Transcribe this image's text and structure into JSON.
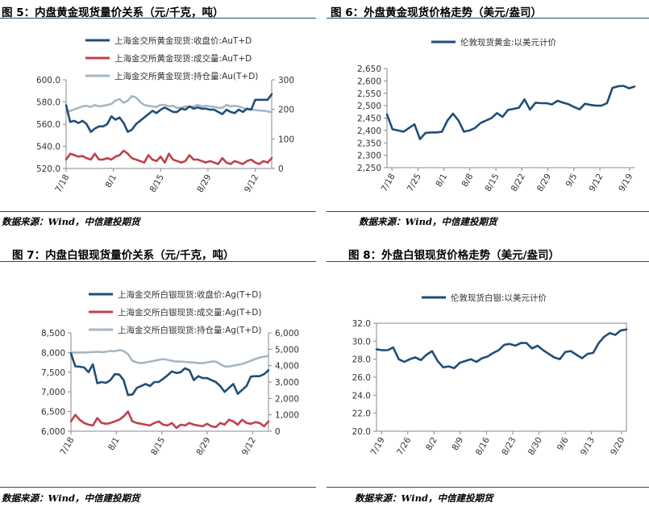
{
  "captions": {
    "fig5": "图 5：内盘黄金现货量价关系（元/千克，吨）",
    "fig6": "图 6：外盘黄金现货价格走势（美元/盎司）",
    "fig7": "图 7：内盘白银现货量价关系（元/千克，吨）",
    "fig8": "图 8：外盘白银现货价格走势（美元/盎司）",
    "source": "数据来源：Wind，中信建投期货"
  },
  "colors": {
    "navy": "#1f4e79",
    "red": "#c0404a",
    "gray": "#a6b6c4",
    "rule": "#1f4e79"
  },
  "chart_data": [
    {
      "id": "fig5",
      "type": "line",
      "x_ticks": [
        "7/18",
        "8/1",
        "8/15",
        "8/29",
        "9/12"
      ],
      "ylim": [
        520,
        600
      ],
      "y_ticks": [
        "520.0",
        "540.0",
        "560.0",
        "580.0",
        "600.0"
      ],
      "y2lim": [
        0,
        300
      ],
      "y2_ticks": [
        "0",
        "100",
        "200",
        "300"
      ],
      "series": [
        {
          "name": "上海金交所黄金现货:收盘价:AuT+D",
          "axis": "left",
          "color": "#1f4e79",
          "values": [
            577,
            562,
            563,
            561,
            563,
            560,
            553,
            556,
            558,
            558,
            560,
            567,
            564,
            566,
            561,
            553,
            555,
            560,
            563,
            566,
            569,
            572,
            570,
            573,
            575,
            573,
            571,
            571,
            574,
            573,
            576,
            574,
            575,
            574,
            574,
            573,
            573,
            571,
            569,
            573,
            571,
            570,
            573,
            571,
            574,
            573,
            582,
            582,
            582,
            582,
            587
          ]
        },
        {
          "name": "上海金交所黄金现货:成交量:AuT+D",
          "axis": "right",
          "color": "#c0404a",
          "values": [
            30,
            50,
            45,
            40,
            42,
            35,
            30,
            50,
            30,
            30,
            35,
            30,
            40,
            45,
            60,
            50,
            35,
            30,
            25,
            20,
            45,
            30,
            25,
            40,
            20,
            50,
            30,
            25,
            20,
            25,
            45,
            30,
            30,
            25,
            20,
            25,
            20,
            15,
            35,
            20,
            15,
            25,
            20,
            15,
            25,
            30,
            20,
            15,
            25,
            20,
            35
          ]
        },
        {
          "name": "上海金交所黄金现货:持仓量:Au(T+D)",
          "axis": "right",
          "color": "#a6b6c4",
          "values": [
            190,
            195,
            200,
            205,
            210,
            212,
            208,
            215,
            210,
            212,
            215,
            218,
            230,
            235,
            222,
            230,
            245,
            240,
            225,
            215,
            212,
            210,
            208,
            215,
            215,
            210,
            212,
            205,
            205,
            210,
            208,
            210,
            215,
            210,
            212,
            210,
            208,
            205,
            205,
            215,
            210,
            212,
            210,
            205,
            200,
            200,
            198,
            196,
            195,
            193,
            190
          ]
        }
      ]
    },
    {
      "id": "fig6",
      "type": "line",
      "x_ticks": [
        "7/18",
        "7/25",
        "8/1",
        "8/8",
        "8/15",
        "8/22",
        "8/29",
        "9/5",
        "9/12",
        "9/19"
      ],
      "ylim": [
        2250,
        2650
      ],
      "y_ticks": [
        "2,250",
        "2,300",
        "2,350",
        "2,400",
        "2,450",
        "2,500",
        "2,550",
        "2,600",
        "2,650"
      ],
      "series": [
        {
          "name": "伦敦现货黄金:以美元计价",
          "color": "#1f4e79",
          "values": [
            2465,
            2405,
            2400,
            2395,
            2410,
            2425,
            2365,
            2390,
            2392,
            2392,
            2395,
            2440,
            2468,
            2440,
            2395,
            2400,
            2410,
            2430,
            2440,
            2450,
            2470,
            2455,
            2483,
            2487,
            2492,
            2525,
            2484,
            2512,
            2510,
            2510,
            2505,
            2520,
            2512,
            2506,
            2495,
            2485,
            2508,
            2503,
            2500,
            2500,
            2510,
            2572,
            2578,
            2580,
            2570,
            2577
          ]
        }
      ]
    },
    {
      "id": "fig7",
      "type": "line",
      "x_ticks": [
        "7/18",
        "8/1",
        "8/15",
        "8/29",
        "9/12"
      ],
      "ylim": [
        6000,
        8500
      ],
      "y_ticks": [
        "6,000",
        "6,500",
        "7,000",
        "7,500",
        "8,000",
        "8,500"
      ],
      "y2lim": [
        0,
        6000
      ],
      "y2_ticks": [
        "0",
        "1,000",
        "2,000",
        "3,000",
        "4,000",
        "5,000",
        "6,000"
      ],
      "series": [
        {
          "name": "上海金交所白银现货:收盘价:Ag(T+D)",
          "axis": "left",
          "color": "#1f4e79",
          "values": [
            7980,
            7650,
            7640,
            7620,
            7500,
            7700,
            7220,
            7250,
            7230,
            7300,
            7450,
            7440,
            7300,
            6920,
            6930,
            7100,
            7150,
            7200,
            7150,
            7250,
            7250,
            7330,
            7420,
            7520,
            7480,
            7500,
            7600,
            7550,
            7300,
            7400,
            7350,
            7350,
            7300,
            7250,
            7150,
            7000,
            7100,
            7200,
            6950,
            7050,
            7150,
            7390,
            7400,
            7400,
            7450,
            7550
          ]
        },
        {
          "name": "上海金交所白银现货:成交量:Ag(T+D)",
          "axis": "right",
          "color": "#c0404a",
          "values": [
            600,
            1000,
            700,
            500,
            400,
            350,
            800,
            500,
            450,
            500,
            600,
            700,
            900,
            1200,
            600,
            500,
            450,
            400,
            350,
            500,
            600,
            400,
            350,
            500,
            200,
            400,
            350,
            500,
            400,
            350,
            300,
            450,
            300,
            250,
            500,
            400,
            700,
            600,
            400,
            700,
            500,
            450,
            550,
            500,
            300,
            600
          ]
        },
        {
          "name": "上海金交所白银现货:持仓量:Ag(T+D)",
          "axis": "right",
          "color": "#a6b6c4",
          "values": [
            4800,
            4800,
            4810,
            4800,
            4820,
            4830,
            4850,
            4820,
            4850,
            4900,
            4880,
            4950,
            4900,
            4700,
            4300,
            4200,
            4150,
            4200,
            4250,
            4300,
            4350,
            4400,
            4350,
            4300,
            4250,
            4250,
            4230,
            4200,
            4200,
            4150,
            4150,
            4200,
            4250,
            4250,
            4100,
            3950,
            3950,
            4000,
            4050,
            4100,
            4200,
            4300,
            4400,
            4500,
            4550,
            4600
          ]
        }
      ]
    },
    {
      "id": "fig8",
      "type": "line",
      "x_ticks": [
        "7/19",
        "7/26",
        "8/2",
        "8/9",
        "8/16",
        "8/23",
        "8/30",
        "9/6",
        "9/13",
        "9/20"
      ],
      "ylim": [
        20,
        32
      ],
      "y_ticks": [
        "20.0",
        "22.0",
        "24.0",
        "26.0",
        "28.0",
        "30.0",
        "32.0"
      ],
      "series": [
        {
          "name": "伦敦现货白银:以美元计价",
          "color": "#1f4e79",
          "values": [
            29.1,
            29.0,
            29.0,
            29.3,
            28.0,
            27.7,
            28.0,
            28.2,
            27.9,
            28.5,
            28.9,
            27.8,
            27.1,
            27.2,
            27.0,
            27.6,
            27.8,
            28.0,
            27.7,
            28.1,
            28.3,
            28.7,
            29.0,
            29.6,
            29.7,
            29.5,
            29.8,
            29.8,
            29.2,
            29.5,
            29.0,
            28.6,
            28.2,
            28.0,
            28.8,
            28.9,
            28.5,
            28.1,
            28.6,
            28.7,
            29.8,
            30.5,
            30.9,
            30.7,
            31.2,
            31.3
          ]
        }
      ]
    }
  ]
}
